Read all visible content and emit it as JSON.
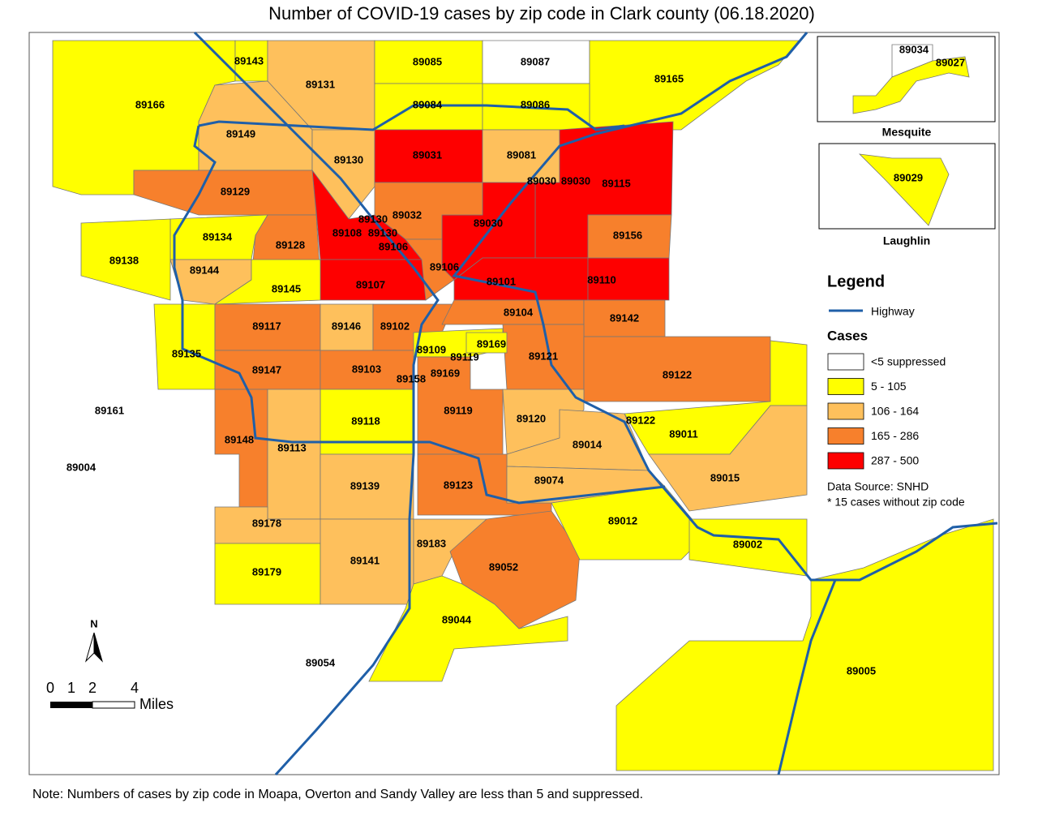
{
  "title": "Number of COVID-19 cases by zip code in Clark county (06.18.2020)",
  "regions": [
    {
      "zip": "89166",
      "class": 1
    },
    {
      "zip": "89143",
      "class": 1
    },
    {
      "zip": "89131",
      "class": 2
    },
    {
      "zip": "89085",
      "class": 1
    },
    {
      "zip": "89087",
      "class": 0
    },
    {
      "zip": "89165",
      "class": 1
    },
    {
      "zip": "89084",
      "class": 1
    },
    {
      "zip": "89086",
      "class": 1
    },
    {
      "zip": "89149",
      "class": 2
    },
    {
      "zip": "89130",
      "class": 2
    },
    {
      "zip": "89031",
      "class": 4
    },
    {
      "zip": "89081",
      "class": 2
    },
    {
      "zip": "89115",
      "class": 4
    },
    {
      "zip": "89030",
      "class": 4
    },
    {
      "zip": "89030"
    },
    {
      "zip": "89030"
    },
    {
      "zip": "89032",
      "class": 3
    },
    {
      "zip": "89108",
      "class": 4
    },
    {
      "zip": "89130"
    },
    {
      "zip": "89130"
    },
    {
      "zip": "89106"
    },
    {
      "zip": "89107",
      "class": 4
    },
    {
      "zip": "89129",
      "class": 3
    },
    {
      "zip": "89128",
      "class": 3
    },
    {
      "zip": "89134",
      "class": 1
    },
    {
      "zip": "89138",
      "class": 1
    },
    {
      "zip": "89144",
      "class": 2
    },
    {
      "zip": "89145",
      "class": 1
    },
    {
      "zip": "89106",
      "class": 3
    },
    {
      "zip": "89101",
      "class": 4
    },
    {
      "zip": "89110",
      "class": 4
    },
    {
      "zip": "89156",
      "class": 3
    },
    {
      "zip": "89135",
      "class": 1
    },
    {
      "zip": "89117",
      "class": 3
    },
    {
      "zip": "89146",
      "class": 2
    },
    {
      "zip": "89102",
      "class": 3
    },
    {
      "zip": "89104",
      "class": 3
    },
    {
      "zip": "89142",
      "class": 3
    },
    {
      "zip": "89121",
      "class": 3
    },
    {
      "zip": "89109",
      "class": 1
    },
    {
      "zip": "89169",
      "class": 1
    },
    {
      "zip": "89119"
    },
    {
      "zip": "89122",
      "class": 3
    },
    {
      "zip": "89147",
      "class": 3
    },
    {
      "zip": "89103",
      "class": 3
    },
    {
      "zip": "89158"
    },
    {
      "zip": "89169"
    },
    {
      "zip": "89119",
      "class": 3
    },
    {
      "zip": "89118",
      "class": 1
    },
    {
      "zip": "89148",
      "class": 3
    },
    {
      "zip": "89113",
      "class": 2
    },
    {
      "zip": "89120",
      "class": 2
    },
    {
      "zip": "89014",
      "class": 2
    },
    {
      "zip": "89011",
      "class": 1
    },
    {
      "zip": "89122"
    },
    {
      "zip": "89015",
      "class": 2
    },
    {
      "zip": "89139",
      "class": 2
    },
    {
      "zip": "89123",
      "class": 3
    },
    {
      "zip": "89074",
      "class": 2
    },
    {
      "zip": "89178",
      "class": 2
    },
    {
      "zip": "89179",
      "class": 1
    },
    {
      "zip": "89141",
      "class": 2
    },
    {
      "zip": "89183",
      "class": 2
    },
    {
      "zip": "89052",
      "class": 3
    },
    {
      "zip": "89012",
      "class": 1
    },
    {
      "zip": "89002",
      "class": 1
    },
    {
      "zip": "89044",
      "class": 1
    },
    {
      "zip": "89005",
      "class": 1
    },
    {
      "zip": "89054"
    },
    {
      "zip": "89161"
    },
    {
      "zip": "89004"
    }
  ],
  "insets": [
    {
      "name": "Mesquite",
      "regions": [
        {
          "zip": "89034",
          "class": 0
        },
        {
          "zip": "89027",
          "class": 1
        }
      ]
    },
    {
      "name": "Laughlin",
      "regions": [
        {
          "zip": "89029",
          "class": 1
        }
      ]
    }
  ],
  "legend": {
    "title": "Legend",
    "highway": "Highway",
    "cases_title": "Cases",
    "classes": [
      {
        "label": "<5 suppressed",
        "color": "#ffffff"
      },
      {
        "label": "5 - 105",
        "color": "#ffff00"
      },
      {
        "label": "106 - 164",
        "color": "#fec05c"
      },
      {
        "label": "165 - 286",
        "color": "#f7802c"
      },
      {
        "label": "287 - 500",
        "color": "#fe0000"
      }
    ]
  },
  "source": "Data Source: SNHD",
  "footnote": "* 15 cases without zip code",
  "scale": {
    "north": "N",
    "ticks": [
      "0",
      "1",
      "2",
      "4"
    ],
    "unit": "Miles"
  },
  "note": "Note: Numbers of cases by zip code in Moapa, Overton and Sandy Valley are less than 5 and suppressed."
}
